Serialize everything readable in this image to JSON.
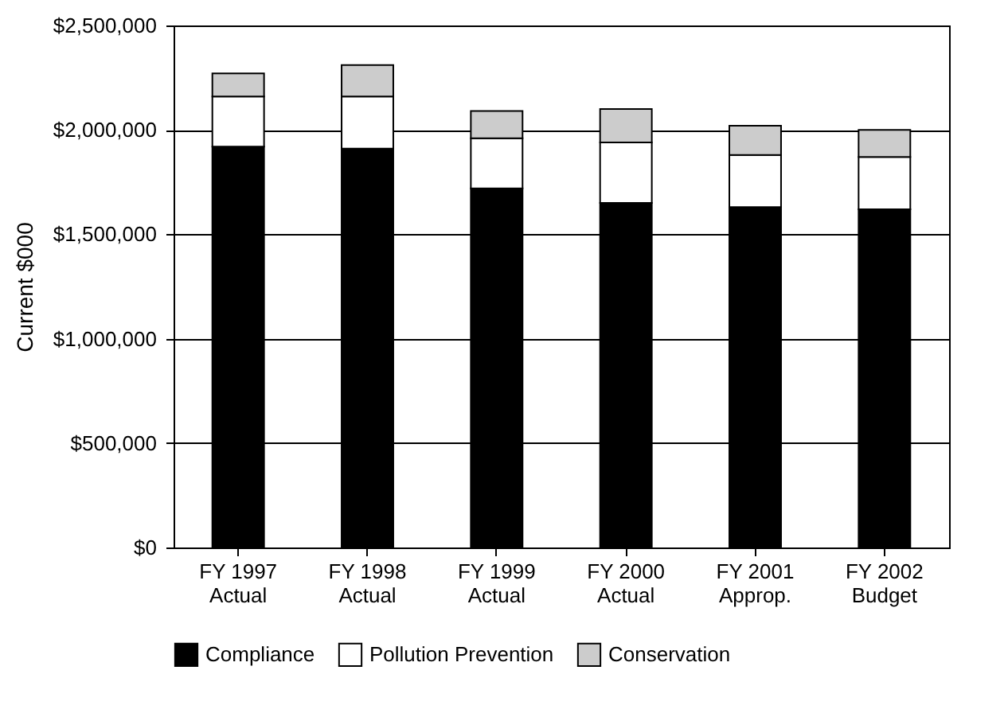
{
  "chart_data": {
    "type": "bar",
    "stacked": true,
    "ylabel": "Current $000",
    "categories": [
      "FY 1997\nActual",
      "FY 1998\nActual",
      "FY 1999\nActual",
      "FY 2000\nActual",
      "FY 2001\nApprop.",
      "FY 2002\nBudget"
    ],
    "series": [
      {
        "name": "Compliance",
        "color": "#000000",
        "values": [
          1920000,
          1910000,
          1720000,
          1650000,
          1630000,
          1620000
        ]
      },
      {
        "name": "Pollution Prevention",
        "color": "#ffffff",
        "values": [
          240000,
          250000,
          240000,
          290000,
          250000,
          250000
        ]
      },
      {
        "name": "Conservation",
        "color": "#cccccc",
        "values": [
          110000,
          150000,
          130000,
          160000,
          140000,
          130000
        ]
      }
    ],
    "ylim": [
      0,
      2500000
    ],
    "yticks": [
      {
        "value": 0,
        "label": "$0"
      },
      {
        "value": 500000,
        "label": "$500,000"
      },
      {
        "value": 1000000,
        "label": "$1,000,000"
      },
      {
        "value": 1500000,
        "label": "$1,500,000"
      },
      {
        "value": 2000000,
        "label": "$2,000,000"
      },
      {
        "value": 2500000,
        "label": "$2,500,000"
      }
    ],
    "grid": "y",
    "legend": "bottom"
  }
}
